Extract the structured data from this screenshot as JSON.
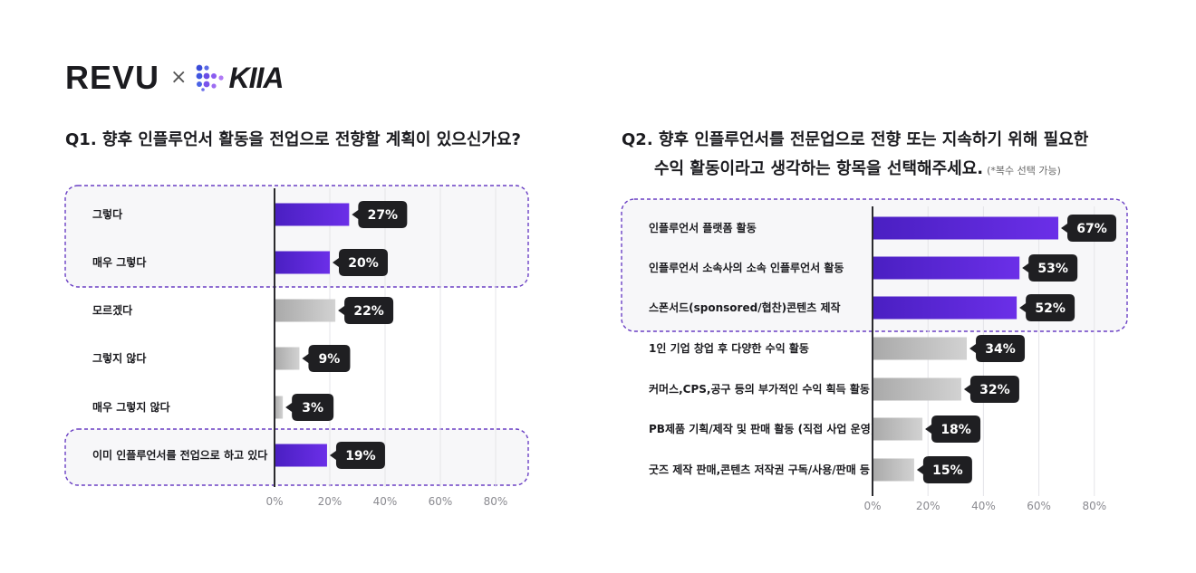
{
  "logo": {
    "brand_left": "REVU",
    "separator": "×",
    "brand_right": "KIIA"
  },
  "colors": {
    "highlight": "#5b22d4",
    "highlight_light": "#6b2fe8",
    "neutral": "#b9b9b9",
    "neutral_light": "#cfcfcf",
    "callout": "#1f1f22",
    "dashed_box": "#6a3fc4",
    "box_fill": "#f7f7f9"
  },
  "q1": {
    "title": "Q1. 향후 인플루언서 활동을 전업으로 전향할 계획이 있으신가요?"
  },
  "q2": {
    "title_line1": "Q2. 향후 인플루언서를 전문업으로 전향 또는 지속하기 위해 필요한",
    "title_line2": "수익 활동이라고 생각하는 항목을 선택해주세요.",
    "title_note": "(*복수 선택 가능)"
  },
  "chart_data": [
    {
      "type": "bar",
      "orientation": "horizontal",
      "categories": [
        "그렇다",
        "매우 그렇다",
        "모르겠다",
        "그렇지 않다",
        "매우 그렇지 않다",
        "이미 인플루언서를 전업으로 하고 있다"
      ],
      "values": [
        27,
        20,
        22,
        9,
        3,
        19
      ],
      "value_labels": [
        "27%",
        "20%",
        "22%",
        "9%",
        "3%",
        "19%"
      ],
      "highlighted": [
        true,
        true,
        false,
        false,
        false,
        true
      ],
      "x_ticks": [
        "0%",
        "20%",
        "40%",
        "60%",
        "80%"
      ],
      "xlim": [
        0,
        80
      ],
      "grid": true
    },
    {
      "type": "bar",
      "orientation": "horizontal",
      "categories": [
        "인플루언서 플랫폼 활동",
        "인플루언서 소속사의 소속 인플루언서 활동",
        "스폰서드(sponsored/협찬)콘텐츠 제작",
        "1인 기업 창업 후 다양한 수익 활동",
        "커머스,CPS,공구 등의 부가적인 수익 획득 활동",
        "PB제품 기획/제작 및 판매 활동 (직접 사업 운영)",
        "굿즈 제작 판매,콘텐츠 저작권 구독/사용/판매 등"
      ],
      "values": [
        67,
        53,
        52,
        34,
        32,
        18,
        15
      ],
      "value_labels": [
        "67%",
        "53%",
        "52%",
        "34%",
        "32%",
        "18%",
        "15%"
      ],
      "highlighted": [
        true,
        true,
        true,
        false,
        false,
        false,
        false
      ],
      "x_ticks": [
        "0%",
        "20%",
        "40%",
        "60%",
        "80%"
      ],
      "xlim": [
        0,
        80
      ],
      "grid": true
    }
  ]
}
